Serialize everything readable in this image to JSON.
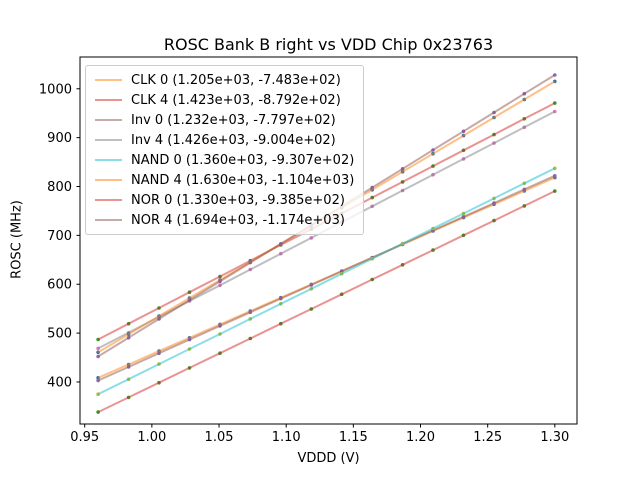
{
  "chart_data": {
    "type": "line",
    "title": "ROSC Bank B right vs VDD Chip 0x23763",
    "xlabel": "VDDD (V)",
    "ylabel": "ROSC (MHz)",
    "xlim": [
      0.9465,
      1.3165
    ],
    "ylim": [
      314,
      1065
    ],
    "xticks": [
      0.95,
      1.0,
      1.05,
      1.1,
      1.15,
      1.2,
      1.25,
      1.3
    ],
    "xtick_labels": [
      "0.95",
      "1.00",
      "1.05",
      "1.10",
      "1.15",
      "1.20",
      "1.25",
      "1.30"
    ],
    "yticks": [
      400,
      500,
      600,
      700,
      800,
      900,
      1000
    ],
    "ytick_labels": [
      "400",
      "500",
      "600",
      "700",
      "800",
      "900",
      "1000"
    ],
    "grid": false,
    "legend_position": "upper left",
    "marker_style": "dot",
    "x": [
      0.96,
      0.9827,
      1.0053,
      1.028,
      1.0507,
      1.0733,
      1.096,
      1.1187,
      1.1413,
      1.164,
      1.1867,
      1.2093,
      1.232,
      1.2547,
      1.2773,
      1.3
    ],
    "series": [
      {
        "name": "CLK 0",
        "legend_label": "CLK 0 (1.205e+03, -7.483e+02)",
        "fit_slope": 1205.0,
        "fit_intercept": -748.3,
        "line_color": "#ff7f0e",
        "line_alpha": 0.5,
        "marker_color": "#1f77b4",
        "values": [
          408.5,
          435.8,
          463.1,
          490.4,
          517.8,
          545.1,
          572.4,
          599.7,
          627.0,
          654.3,
          681.6,
          708.9,
          736.3,
          763.6,
          790.9,
          818.2
        ]
      },
      {
        "name": "CLK 4",
        "legend_label": "CLK 4 (1.423e+03, -8.792e+02)",
        "fit_slope": 1423.0,
        "fit_intercept": -879.2,
        "line_color": "#d62728",
        "line_alpha": 0.5,
        "marker_color": "#2ca02c",
        "values": [
          486.9,
          519.2,
          551.4,
          583.7,
          615.9,
          648.2,
          680.4,
          712.7,
          744.9,
          777.2,
          809.4,
          841.7,
          874.0,
          906.2,
          938.5,
          970.7
        ]
      },
      {
        "name": "Inv 0",
        "legend_label": "Inv 0 (1.232e+03, -7.797e+02)",
        "fit_slope": 1232.0,
        "fit_intercept": -779.7,
        "line_color": "#8c564b",
        "line_alpha": 0.5,
        "marker_color": "#9467bd",
        "values": [
          403.0,
          430.9,
          458.9,
          486.8,
          514.7,
          542.6,
          570.6,
          598.5,
          626.4,
          654.3,
          682.3,
          710.2,
          738.1,
          766.0,
          794.0,
          821.9
        ]
      },
      {
        "name": "Inv 4",
        "legend_label": "Inv 4 (1.426e+03, -9.004e+02)",
        "fit_slope": 1426.0,
        "fit_intercept": -900.4,
        "line_color": "#7f7f7f",
        "line_alpha": 0.5,
        "marker_color": "#e377c2",
        "values": [
          468.6,
          500.9,
          533.2,
          565.6,
          597.9,
          630.2,
          662.5,
          694.9,
          727.2,
          759.5,
          791.8,
          824.1,
          856.5,
          888.8,
          921.1,
          953.4
        ]
      },
      {
        "name": "NAND 0",
        "legend_label": "NAND 0 (1.360e+03, -9.307e+02)",
        "fit_slope": 1360.0,
        "fit_intercept": -930.7,
        "line_color": "#17becf",
        "line_alpha": 0.5,
        "marker_color": "#bcbd22",
        "values": [
          374.9,
          405.7,
          436.6,
          467.4,
          498.2,
          529.0,
          559.9,
          590.7,
          621.5,
          652.3,
          683.2,
          714.0,
          744.8,
          775.6,
          806.5,
          837.3
        ]
      },
      {
        "name": "NAND 4",
        "legend_label": "NAND 4 (1.630e+03, -1.104e+03)",
        "fit_slope": 1630.0,
        "fit_intercept": -1104.0,
        "line_color": "#ff7f0e",
        "line_alpha": 0.5,
        "marker_color": "#1f77b4",
        "values": [
          460.8,
          497.7,
          534.7,
          571.6,
          608.6,
          645.5,
          682.5,
          719.4,
          756.4,
          793.3,
          830.3,
          867.2,
          904.2,
          941.1,
          978.1,
          1015.0
        ]
      },
      {
        "name": "NOR 0",
        "legend_label": "NOR 0 (1.330e+03, -9.385e+02)",
        "fit_slope": 1330.0,
        "fit_intercept": -938.5,
        "line_color": "#d62728",
        "line_alpha": 0.5,
        "marker_color": "#2ca02c",
        "values": [
          338.3,
          368.4,
          398.6,
          428.7,
          458.9,
          489.0,
          519.2,
          549.3,
          579.5,
          609.6,
          639.8,
          669.9,
          700.1,
          730.2,
          760.4,
          790.5
        ]
      },
      {
        "name": "NOR 4",
        "legend_label": "NOR 4 (1.694e+03, -1.174e+03)",
        "fit_slope": 1694.0,
        "fit_intercept": -1174.0,
        "line_color": "#8c564b",
        "line_alpha": 0.5,
        "marker_color": "#9467bd",
        "values": [
          452.2,
          490.6,
          529.0,
          567.4,
          605.8,
          644.2,
          682.6,
          721.0,
          759.4,
          797.8,
          836.2,
          874.6,
          913.0,
          951.4,
          989.8,
          1028.2
        ]
      }
    ],
    "colors": {
      "axes": "#000000",
      "tick_labels": "#000000",
      "legend_border": "#cccccc",
      "background": "#ffffff"
    }
  }
}
